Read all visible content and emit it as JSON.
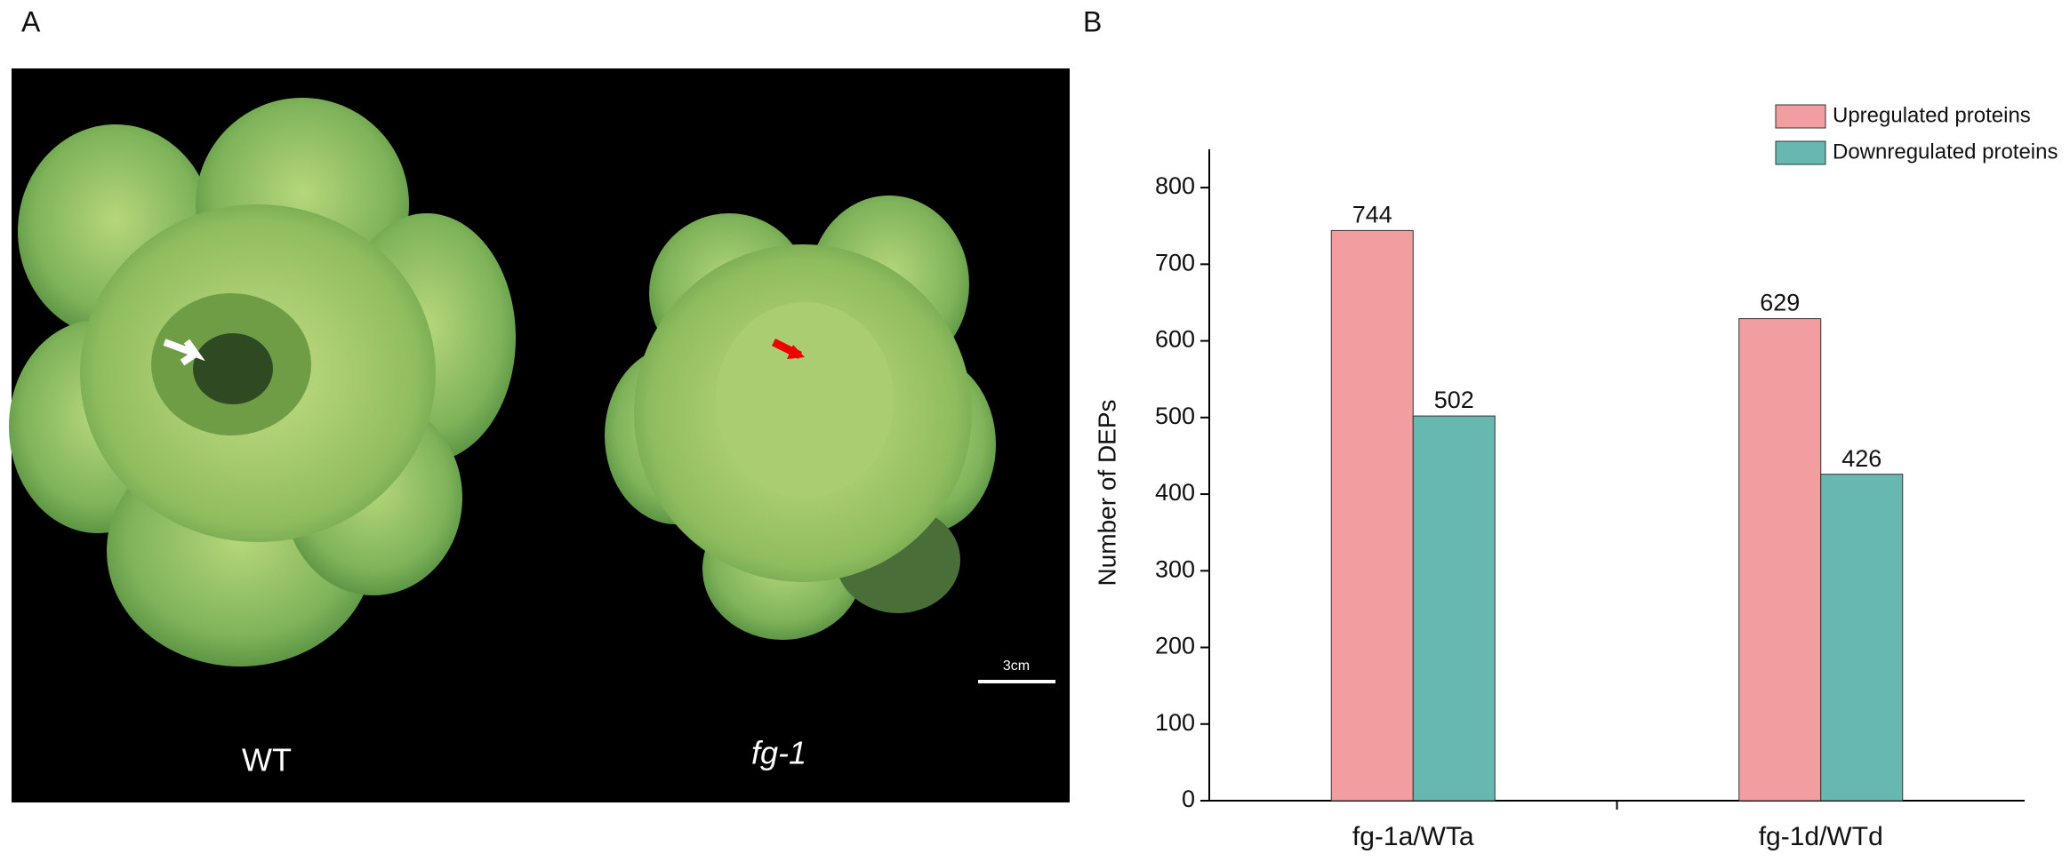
{
  "panel_a": {
    "label": "A",
    "left_label": "WT",
    "right_label": "fg-1",
    "scale_bar": "3cm"
  },
  "panel_b": {
    "label": "B"
  },
  "chart_data": {
    "type": "bar",
    "y_label": "Number of DEPs",
    "categories": [
      "fg-1a/WTa",
      "fg-1d/WTd"
    ],
    "series": [
      {
        "name": "Upregulated proteins",
        "color": "#f29ea0",
        "values": [
          744,
          629
        ]
      },
      {
        "name": "Downregulated proteins",
        "color": "#66b8b0",
        "values": [
          502,
          426
        ]
      }
    ],
    "ylim": [
      0,
      850
    ],
    "yticks": [
      0,
      100,
      200,
      300,
      400,
      500,
      600,
      700,
      800
    ],
    "legend": "upper right"
  }
}
